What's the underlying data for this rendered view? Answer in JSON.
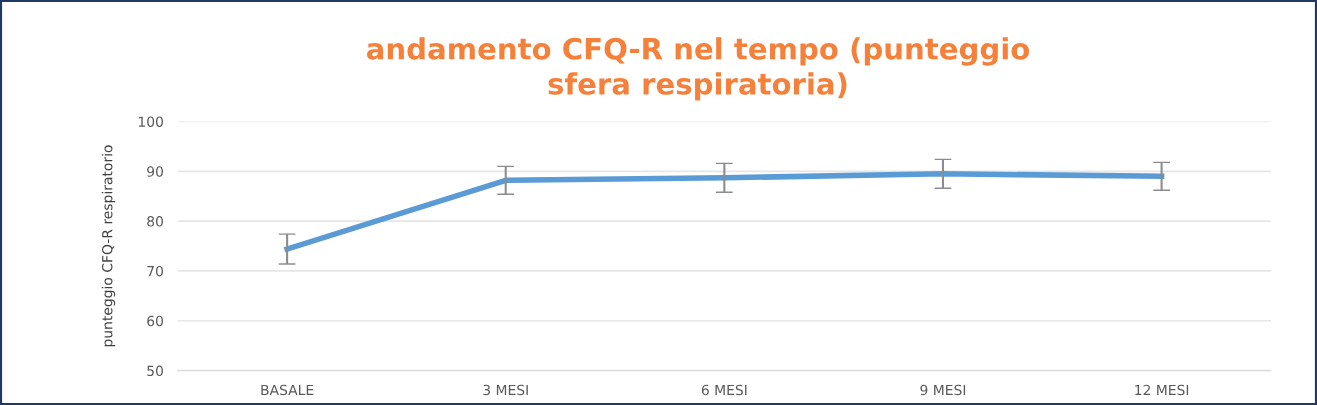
{
  "chart_data": {
    "type": "line",
    "title": "andamento CFQ-R nel tempo (punteggio\nsfera respiratoria)",
    "ylabel": "punteggio CFQ-R respiratorio",
    "categories": [
      "BASALE",
      "3 MESI",
      "6 MESI",
      "9 MESI",
      "12 MESI"
    ],
    "series": [
      {
        "color": "#5b9bd5",
        "values": [
          74.4,
          88.2,
          88.7,
          89.5,
          89.0
        ],
        "errors": [
          3,
          2.8,
          2.9,
          2.9,
          2.8
        ]
      }
    ],
    "ylim": [
      50,
      100
    ],
    "yticks": [
      50,
      60,
      70,
      80,
      90,
      100
    ],
    "grid": "y",
    "legend": false,
    "marker": "none",
    "line_style": "solid"
  }
}
